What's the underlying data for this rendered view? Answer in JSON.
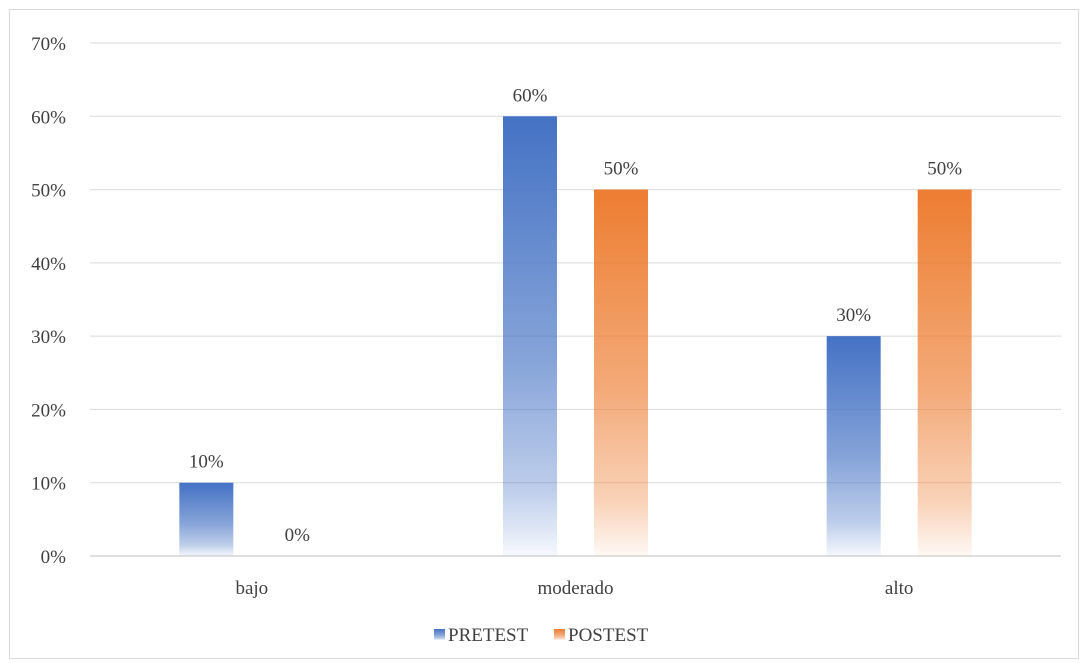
{
  "chart_data": {
    "type": "bar",
    "categories": [
      "bajo",
      "moderado",
      "alto"
    ],
    "series": [
      {
        "name": "PRETEST",
        "values": [
          10,
          60,
          30
        ],
        "labels": [
          "10%",
          "60%",
          "30%"
        ],
        "color": "#4472c4"
      },
      {
        "name": "POSTEST",
        "values": [
          0,
          50,
          50
        ],
        "labels": [
          "0%",
          "50%",
          "50%"
        ],
        "color": "#ed7d31"
      }
    ],
    "ylim": [
      0,
      70
    ],
    "yticks": [
      "0%",
      "10%",
      "20%",
      "30%",
      "40%",
      "50%",
      "60%",
      "70%"
    ],
    "grid": true,
    "legend": "bottom"
  }
}
